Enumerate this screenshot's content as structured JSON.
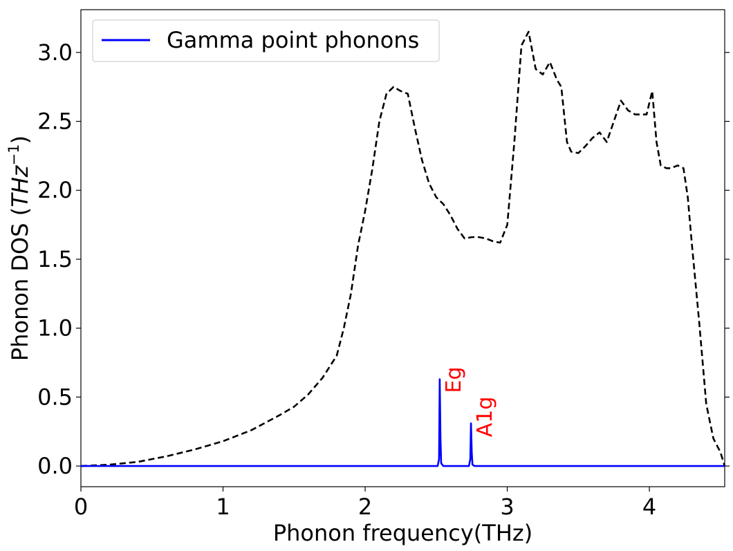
{
  "chart_data": {
    "type": "line",
    "xlabel": "Phonon frequency(THz)",
    "ylabel_main": "Phonon DOS (",
    "ylabel_unit": "THz",
    "ylabel_exp": "−1",
    "ylabel_close": ")",
    "xlim": [
      0,
      4.53
    ],
    "ylim": [
      -0.15,
      3.31
    ],
    "xticks": [
      0,
      1,
      2,
      3,
      4
    ],
    "xtick_labels": [
      "0",
      "1",
      "2",
      "3",
      "4"
    ],
    "yticks": [
      0.0,
      0.5,
      1.0,
      1.5,
      2.0,
      2.5,
      3.0
    ],
    "ytick_labels": [
      "0.0",
      "0.5",
      "1.0",
      "1.5",
      "2.0",
      "2.5",
      "3.0"
    ],
    "legend": {
      "position": "upper-left"
    },
    "series": [
      {
        "name": "",
        "style": "dashed",
        "color": "#000000",
        "x": [
          0,
          0.2,
          0.4,
          0.6,
          0.8,
          1.0,
          1.2,
          1.4,
          1.5,
          1.6,
          1.7,
          1.8,
          1.85,
          1.9,
          1.95,
          2.0,
          2.05,
          2.1,
          2.15,
          2.2,
          2.25,
          2.3,
          2.35,
          2.4,
          2.45,
          2.5,
          2.55,
          2.6,
          2.65,
          2.7,
          2.75,
          2.8,
          2.85,
          2.9,
          2.95,
          3.0,
          3.05,
          3.1,
          3.15,
          3.2,
          3.25,
          3.3,
          3.35,
          3.38,
          3.42,
          3.45,
          3.5,
          3.55,
          3.6,
          3.65,
          3.7,
          3.75,
          3.8,
          3.85,
          3.9,
          3.95,
          3.98,
          4.02,
          4.05,
          4.08,
          4.12,
          4.15,
          4.2,
          4.24,
          4.27,
          4.3,
          4.35,
          4.4,
          4.45,
          4.5,
          4.53
        ],
        "y": [
          0.0,
          0.01,
          0.03,
          0.07,
          0.12,
          0.18,
          0.26,
          0.37,
          0.43,
          0.52,
          0.64,
          0.8,
          1.0,
          1.25,
          1.6,
          1.85,
          2.15,
          2.5,
          2.7,
          2.75,
          2.72,
          2.7,
          2.45,
          2.22,
          2.05,
          1.95,
          1.9,
          1.82,
          1.72,
          1.65,
          1.66,
          1.66,
          1.65,
          1.63,
          1.62,
          1.75,
          2.35,
          3.05,
          3.15,
          2.88,
          2.84,
          2.93,
          2.8,
          2.75,
          2.35,
          2.28,
          2.27,
          2.32,
          2.38,
          2.42,
          2.35,
          2.5,
          2.65,
          2.58,
          2.55,
          2.55,
          2.55,
          2.72,
          2.35,
          2.18,
          2.16,
          2.16,
          2.18,
          2.16,
          1.95,
          1.6,
          1.05,
          0.45,
          0.2,
          0.1,
          0.0
        ]
      },
      {
        "name": "Gamma point phonons",
        "style": "solid",
        "color": "#0000ff",
        "x": [
          0,
          2.51,
          2.52,
          2.525,
          2.53,
          2.535,
          2.55,
          2.73,
          2.74,
          2.745,
          2.75,
          2.755,
          2.77,
          4.53
        ],
        "y": [
          0,
          0,
          0.05,
          0.63,
          0.2,
          0.02,
          0,
          0,
          0.05,
          0.31,
          0.1,
          0.01,
          0,
          0
        ]
      }
    ],
    "annotations": [
      {
        "text": "Eg",
        "x": 2.53,
        "y": 0.63,
        "color": "#ff0000"
      },
      {
        "text": "A1g",
        "x": 2.75,
        "y": 0.31,
        "color": "#ff0000"
      }
    ]
  }
}
